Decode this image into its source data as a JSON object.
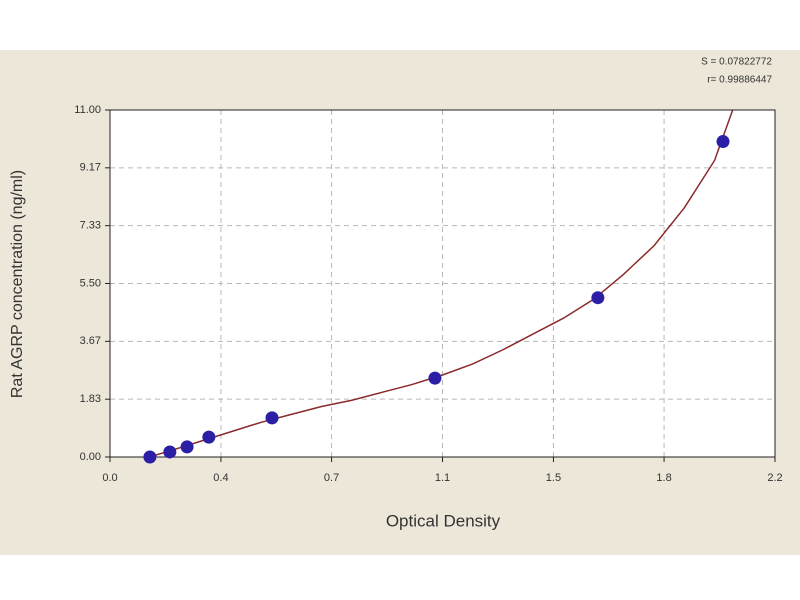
{
  "chart_data": {
    "type": "scatter",
    "x_label": "Optical Density",
    "y_label": "Rat AGRP concentration (ng/ml)",
    "annotations": [
      "S = 0.07822772",
      "r= 0.99886447"
    ],
    "xlim": [
      0,
      2.2
    ],
    "ylim": [
      0,
      11
    ],
    "xticks": [
      {
        "value": 0,
        "label": "0.0"
      },
      {
        "value": 0.367,
        "label": "0.4"
      },
      {
        "value": 0.733,
        "label": "0.7"
      },
      1.1,
      {
        "value": 1.467,
        "label": "1.5"
      },
      {
        "value": 1.833,
        "label": "1.8"
      },
      2.2
    ],
    "yticks": [
      {
        "value": 0,
        "label": "0.00"
      },
      {
        "value": 1.833,
        "label": "1.83"
      },
      {
        "value": 3.667,
        "label": "3.67"
      },
      {
        "value": 5.5,
        "label": "5.50"
      },
      {
        "value": 7.333,
        "label": "7.33"
      },
      {
        "value": 9.167,
        "label": "9.17"
      },
      {
        "value": 11,
        "label": "11.00"
      }
    ],
    "grid": true,
    "series": [
      {
        "color": "#2b1fa6",
        "x": [
          0.132,
          0.198,
          0.255,
          0.327,
          0.536,
          1.075,
          1.614,
          2.028
        ],
        "values": [
          0,
          0.16,
          0.32,
          0.63,
          1.24,
          2.5,
          5.05,
          10.0
        ]
      },
      {
        "color": "#8b2a2a",
        "line": true,
        "x": [
          0.13,
          0.2,
          0.3,
          0.4,
          0.5,
          0.6,
          0.7,
          0.8,
          0.9,
          1.0,
          1.1,
          1.2,
          1.3,
          1.4,
          1.5,
          1.6,
          1.7,
          1.8,
          1.9,
          2.0,
          2.06
        ],
        "values": [
          0,
          0.2,
          0.5,
          0.8,
          1.1,
          1.35,
          1.6,
          1.8,
          2.05,
          2.3,
          2.6,
          2.95,
          3.4,
          3.9,
          4.4,
          5.0,
          5.8,
          6.7,
          7.9,
          9.4,
          11.0
        ]
      }
    ]
  }
}
